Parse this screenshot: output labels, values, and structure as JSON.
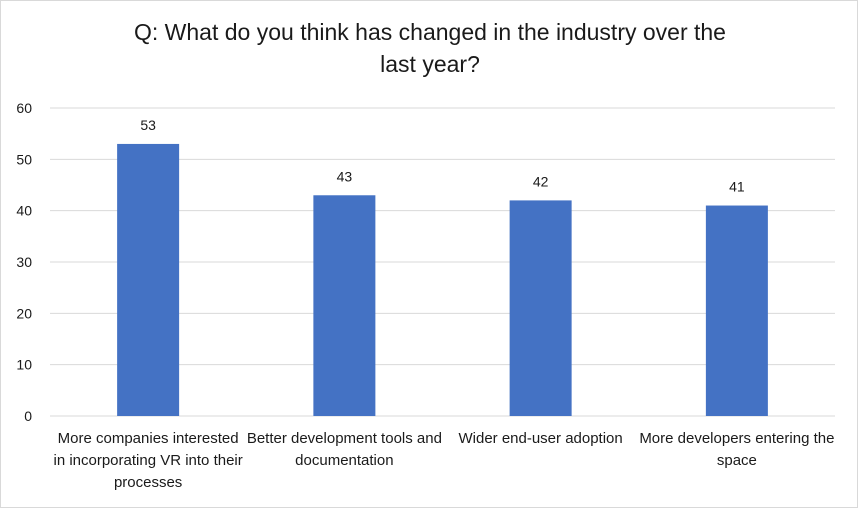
{
  "chart_data": {
    "type": "bar",
    "title": "Q: What do you think has changed in the industry over the\nlast year?",
    "categories": [
      "More companies interested in incorporating VR into their processes",
      "Better development tools and documentation",
      "Wider end-user adoption",
      "More developers entering the space"
    ],
    "series": [
      {
        "values": [
          53,
          43,
          42,
          41
        ],
        "color": "#4472c4"
      }
    ],
    "ylim": [
      0,
      60
    ],
    "yticks": [
      0,
      10,
      20,
      30,
      40,
      50,
      60
    ],
    "grid": true,
    "data_labels": true,
    "legend": "none"
  }
}
